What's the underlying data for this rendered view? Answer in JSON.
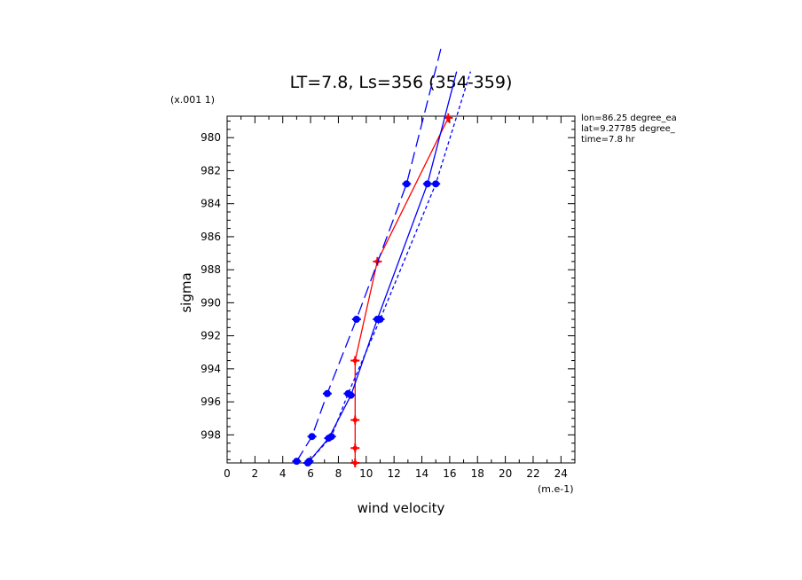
{
  "chart_data": {
    "type": "line",
    "title": "LT=7.8, Ls=356 (354-359)",
    "xlabel": "wind velocity",
    "ylabel": "sigma",
    "x_units": "(m.e-1)",
    "y_units": "(x.001 1)",
    "xlim": [
      0,
      25
    ],
    "ylim": [
      999.7,
      978.7
    ],
    "x_ticks": [
      "0",
      "2",
      "4",
      "6",
      "8",
      "10",
      "12",
      "14",
      "16",
      "18",
      "20",
      "22",
      "24"
    ],
    "y_ticks": [
      "980",
      "982",
      "984",
      "986",
      "988",
      "990",
      "992",
      "994",
      "996",
      "998"
    ],
    "grid": false,
    "legend": "none",
    "info": [
      "lon=86.25 degree_ea",
      "lat=9.27785 degree_",
      "time=7.8 hr"
    ],
    "series": [
      {
        "color": "#ff0000",
        "dash": "solid",
        "x": [
          15.9,
          10.8,
          9.2,
          9.2,
          9.2,
          9.2
        ],
        "y": [
          978.8,
          987.5,
          993.5,
          997.1,
          998.8,
          999.7
        ]
      },
      {
        "color": "#0000ff",
        "dash": "solid",
        "x": [
          5.8,
          7.3,
          8.9,
          10.8,
          14.4,
          16.5
        ],
        "y": [
          999.7,
          998.2,
          995.6,
          991.0,
          982.8,
          976.0
        ]
      },
      {
        "color": "#0000ff",
        "dash": "long-dash",
        "x": [
          5.0,
          6.1,
          7.2,
          9.3,
          12.9,
          15.4
        ],
        "y": [
          999.6,
          998.1,
          995.5,
          991.0,
          982.8,
          974.5
        ]
      },
      {
        "color": "#0000ff",
        "dash": "short-dash",
        "x": [
          5.9,
          7.5,
          8.7,
          11.0,
          15.0,
          17.5
        ],
        "y": [
          999.6,
          998.1,
          995.5,
          991.0,
          982.8,
          976.0
        ]
      }
    ]
  }
}
